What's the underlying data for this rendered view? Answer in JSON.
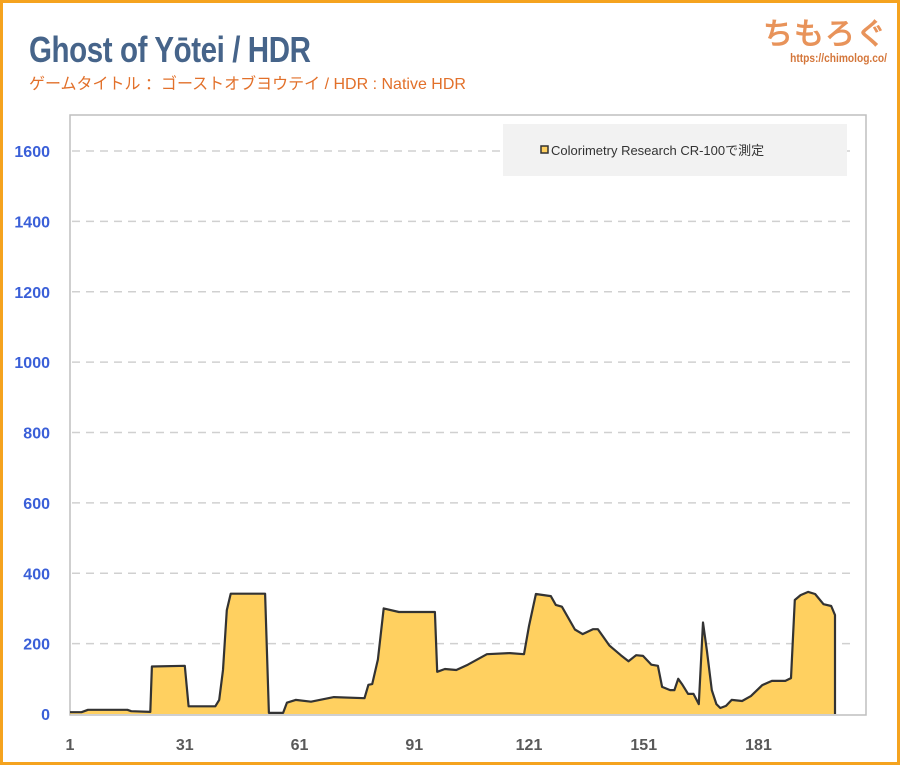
{
  "title": "Ghost of Yōtei / HDR",
  "subtitle": "ゲームタイトル ：ゴーストオブヨウテイ / HDR : Native HDR",
  "logo": {
    "text": "ちもろぐ",
    "url": "https://chimolog.co/"
  },
  "colors": {
    "border": "#f5a31f",
    "fill": "#ffd060",
    "line": "#333333",
    "ytick": "#3a5fd8",
    "title": "#46648a",
    "subtitle": "#e2702a"
  },
  "chart_data": {
    "type": "area",
    "title": "Ghost of Yōtei / HDR",
    "xlabel": "",
    "ylabel": "",
    "xlim": [
      1,
      206
    ],
    "ylim": [
      0,
      1700
    ],
    "yticks": [
      0,
      200,
      400,
      600,
      800,
      1000,
      1200,
      1400,
      1600
    ],
    "xticks": [
      1,
      31,
      61,
      91,
      121,
      151,
      181
    ],
    "grid": true,
    "legend_position": "top-right",
    "series": [
      {
        "name": "Colorimetry Research CR-100で測定",
        "x": [
          1,
          4,
          5.7,
          16,
          17,
          22,
          22.4,
          31,
          32,
          39,
          40,
          41,
          42,
          43,
          52,
          53,
          56.7,
          57.7,
          60,
          64,
          70,
          78,
          79,
          80,
          81.5,
          83,
          87,
          96.4,
          97,
          99,
          102,
          105,
          110,
          116,
          119.7,
          121,
          122.8,
          126.7,
          128,
          129.6,
          133,
          135,
          137.7,
          139,
          142,
          145,
          147,
          149,
          150.8,
          153,
          154.7,
          155.8,
          157.9,
          159,
          160,
          161,
          162.6,
          164,
          165.4,
          166.5,
          167.5,
          168.8,
          170,
          171,
          172.5,
          174,
          176.7,
          179,
          182,
          184.5,
          188,
          189.5,
          190.5,
          192,
          194,
          195.8,
          198,
          200,
          201
        ],
        "y": [
          5,
          5,
          12,
          12,
          8,
          6,
          135,
          137,
          22,
          22,
          40,
          125,
          295,
          342,
          342,
          3,
          3,
          32,
          40,
          35,
          48,
          45,
          83,
          85,
          155,
          300,
          290,
          290,
          120,
          128,
          125,
          140,
          170,
          173,
          170,
          250,
          341,
          335,
          310,
          305,
          240,
          227,
          241,
          241,
          195,
          167,
          150,
          167,
          165,
          140,
          137,
          77,
          68,
          68,
          100,
          85,
          57,
          57,
          28,
          260,
          180,
          68,
          28,
          17,
          23,
          40,
          37,
          51,
          82,
          94,
          94,
          102,
          324,
          338,
          347,
          341,
          312,
          307,
          281
        ]
      }
    ]
  }
}
